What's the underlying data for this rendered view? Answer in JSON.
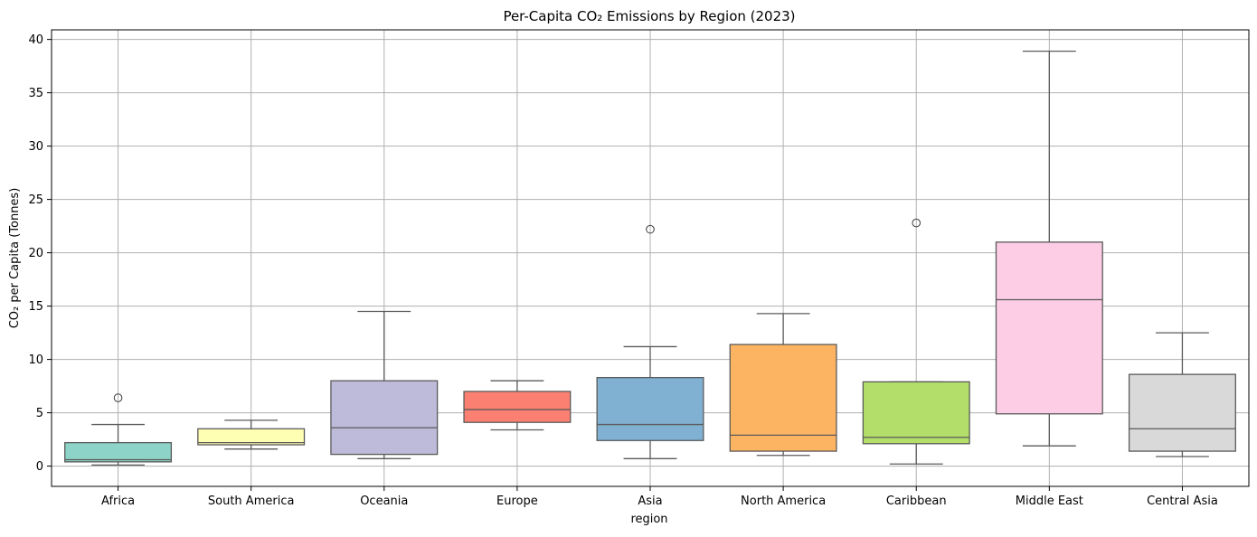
{
  "chart_data": {
    "type": "box",
    "title": "Per-Capita CO₂ Emissions by Region (2023)",
    "xlabel": "region",
    "ylabel": "CO₂ per Capita (Tonnes)",
    "ylim": [
      -1.9,
      40.9
    ],
    "yticks": [
      0,
      5,
      10,
      15,
      20,
      25,
      30,
      35,
      40
    ],
    "grid": true,
    "categories": [
      "Africa",
      "South America",
      "Oceania",
      "Europe",
      "Asia",
      "North America",
      "Caribbean",
      "Middle East",
      "Central Asia"
    ],
    "boxes": [
      {
        "category": "Africa",
        "whisker_low": 0.1,
        "q1": 0.4,
        "median": 0.6,
        "q3": 2.2,
        "whisker_high": 3.9,
        "outliers": [
          6.4
        ],
        "color": "#8dd3c7"
      },
      {
        "category": "South America",
        "whisker_low": 1.6,
        "q1": 2.0,
        "median": 2.2,
        "q3": 3.5,
        "whisker_high": 4.3,
        "outliers": [],
        "color": "#ffffb3"
      },
      {
        "category": "Oceania",
        "whisker_low": 0.7,
        "q1": 1.1,
        "median": 3.6,
        "q3": 8.0,
        "whisker_high": 14.5,
        "outliers": [],
        "color": "#bebada"
      },
      {
        "category": "Europe",
        "whisker_low": 3.4,
        "q1": 4.1,
        "median": 5.3,
        "q3": 7.0,
        "whisker_high": 8.0,
        "outliers": [],
        "color": "#fb8072"
      },
      {
        "category": "Asia",
        "whisker_low": 0.7,
        "q1": 2.4,
        "median": 3.9,
        "q3": 8.3,
        "whisker_high": 11.2,
        "outliers": [
          22.2
        ],
        "color": "#80b1d3"
      },
      {
        "category": "North America",
        "whisker_low": 1.0,
        "q1": 1.4,
        "median": 2.9,
        "q3": 11.4,
        "whisker_high": 14.3,
        "outliers": [],
        "color": "#fdb462"
      },
      {
        "category": "Caribbean",
        "whisker_low": 0.2,
        "q1": 2.1,
        "median": 2.7,
        "q3": 7.9,
        "whisker_high": 7.9,
        "outliers": [
          22.8
        ],
        "color": "#b3de69"
      },
      {
        "category": "Middle East",
        "whisker_low": 1.9,
        "q1": 4.9,
        "median": 15.6,
        "q3": 21.0,
        "whisker_high": 38.9,
        "outliers": [],
        "color": "#fccde5"
      },
      {
        "category": "Central Asia",
        "whisker_low": 0.9,
        "q1": 1.4,
        "median": 3.5,
        "q3": 8.6,
        "whisker_high": 12.5,
        "outliers": [],
        "color": "#d9d9d9"
      }
    ]
  }
}
